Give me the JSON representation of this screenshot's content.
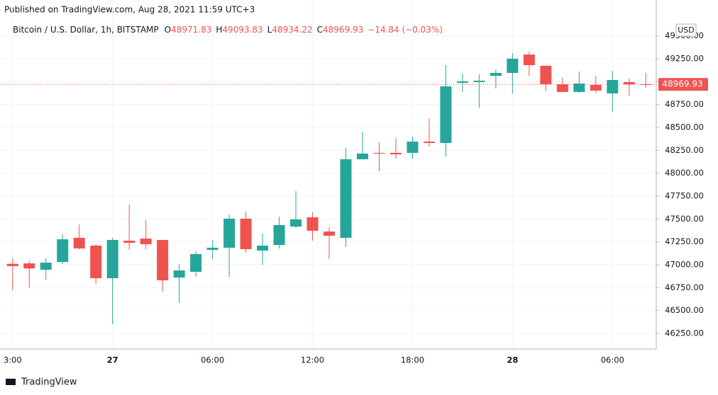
{
  "published": "Published on TradingView.com, Aug 28, 2021 11:59 UTC+3",
  "footer": "TradingView",
  "chart_data": {
    "type": "candlestick",
    "symbol": "Bitcoin / U.S. Dollar, 1h, BITSTAMP",
    "ohlc_letters": [
      "O",
      "H",
      "L",
      "C"
    ],
    "change_label": "−14.84 (−0.03%)",
    "currency": "USD",
    "up_color": "#26a69a",
    "down_color": "#ef5350",
    "grid": true,
    "categories": [
      "3:00",
      null,
      null,
      null,
      null,
      null,
      "27",
      null,
      null,
      null,
      null,
      null,
      "06:00",
      null,
      null,
      null,
      null,
      null,
      "12:00",
      null,
      null,
      null,
      null,
      null,
      "18:00",
      null,
      null,
      null,
      null,
      null,
      "28",
      null,
      null,
      null,
      null,
      null,
      "06:00",
      null,
      null
    ],
    "open": [
      47010,
      47015,
      46945,
      47030,
      47294,
      47209,
      46853,
      47263,
      47286,
      47271,
      46860,
      46923,
      47163,
      47186,
      47503,
      47155,
      47216,
      47417,
      47518,
      47363,
      47294,
      48152,
      48222,
      48222,
      48222,
      48345,
      48330,
      48987,
      48995,
      49064,
      49095,
      49296,
      49173,
      48971,
      48887,
      48964,
      48871,
      48995,
      48971.83
    ],
    "high": [
      47070,
      47045,
      47077,
      47332,
      47440,
      47224,
      47294,
      47657,
      47487,
      47271,
      47008,
      47147,
      47271,
      47549,
      47580,
      47340,
      47526,
      47804,
      47572,
      47410,
      48276,
      48454,
      48338,
      48384,
      48400,
      48593,
      49180,
      49088,
      49080,
      49134,
      49312,
      49327,
      49173,
      49041,
      49111,
      49064,
      49119,
      49033,
      49093.83
    ],
    "low": [
      46722,
      46750,
      46838,
      47008,
      47170,
      46791,
      46350,
      47162,
      47170,
      46706,
      46583,
      46868,
      47062,
      46868,
      47132,
      47000,
      47178,
      47402,
      47263,
      47062,
      47193,
      48152,
      48021,
      48160,
      48160,
      48291,
      48183,
      48887,
      48716,
      48925,
      48871,
      49064,
      48894,
      48887,
      48879,
      48879,
      48670,
      48848,
      48934.22
    ],
    "close": [
      46985,
      46960,
      47023,
      47278,
      47178,
      46853,
      47271,
      47240,
      47224,
      46830,
      46938,
      47116,
      47186,
      47503,
      47170,
      47209,
      47433,
      47495,
      47371,
      47317,
      48152,
      48214,
      48214,
      48206,
      48345,
      48330,
      48948,
      49003,
      49010,
      49095,
      49250,
      49180,
      48971,
      48887,
      48979,
      48902,
      49018,
      48971,
      48969.93
    ],
    "ylim": [
      46080,
      49675
    ],
    "yticks": [
      {
        "value": 46250,
        "label": "46250.00"
      },
      {
        "value": 46500,
        "label": "46500.00"
      },
      {
        "value": 46750,
        "label": "46750.00"
      },
      {
        "value": 47000,
        "label": "47000.00"
      },
      {
        "value": 47250,
        "label": "47250.00"
      },
      {
        "value": 47500,
        "label": "47500.00"
      },
      {
        "value": 47750,
        "label": "47750.00"
      },
      {
        "value": 48000,
        "label": "48000.00"
      },
      {
        "value": 48250,
        "label": "48250.00"
      },
      {
        "value": 48500,
        "label": "48500.00"
      },
      {
        "value": 48750,
        "label": "48750.00"
      },
      {
        "value": 49000,
        "label": "49000.00"
      },
      {
        "value": 49250,
        "label": "49250.00"
      },
      {
        "value": 49500,
        "label": "49500.00"
      }
    ]
  }
}
